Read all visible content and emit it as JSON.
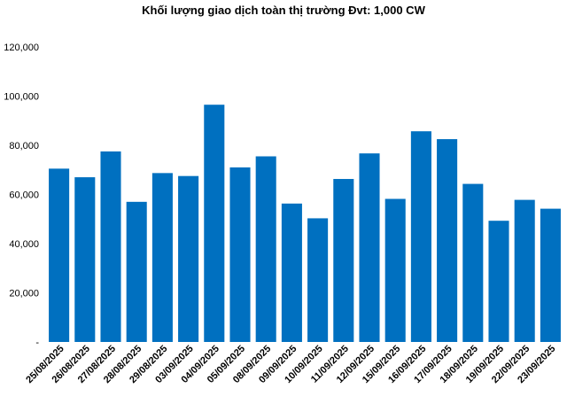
{
  "chart_data": {
    "type": "bar",
    "title": "Khối lượng giao dịch toàn thị trường Đvt: 1,000 CW",
    "xlabel": "",
    "ylabel": "",
    "ylim": [
      0,
      120000
    ],
    "yticks": [
      {
        "value": 0,
        "label": "-"
      },
      {
        "value": 20000,
        "label": "20,000"
      },
      {
        "value": 40000,
        "label": "40,000"
      },
      {
        "value": 60000,
        "label": "60,000"
      },
      {
        "value": 80000,
        "label": "80,000"
      },
      {
        "value": 100000,
        "label": "100,000"
      },
      {
        "value": 120000,
        "label": "120,000"
      }
    ],
    "grid": false,
    "bar_color": "#0070C0",
    "categories": [
      "25/08/2025",
      "26/08/2025",
      "27/08/2025",
      "28/08/2025",
      "29/08/2025",
      "03/09/2025",
      "04/09/2025",
      "05/09/2025",
      "08/09/2025",
      "09/09/2025",
      "10/09/2025",
      "11/09/2025",
      "12/09/2025",
      "15/09/2025",
      "16/09/2025",
      "17/09/2025",
      "18/09/2025",
      "19/09/2025",
      "22/09/2025",
      "23/09/2025"
    ],
    "values": [
      70500,
      67000,
      77500,
      57000,
      68700,
      67500,
      96500,
      71000,
      75500,
      56300,
      50300,
      66300,
      76700,
      58200,
      85700,
      82500,
      64300,
      49300,
      57800,
      54200
    ]
  }
}
